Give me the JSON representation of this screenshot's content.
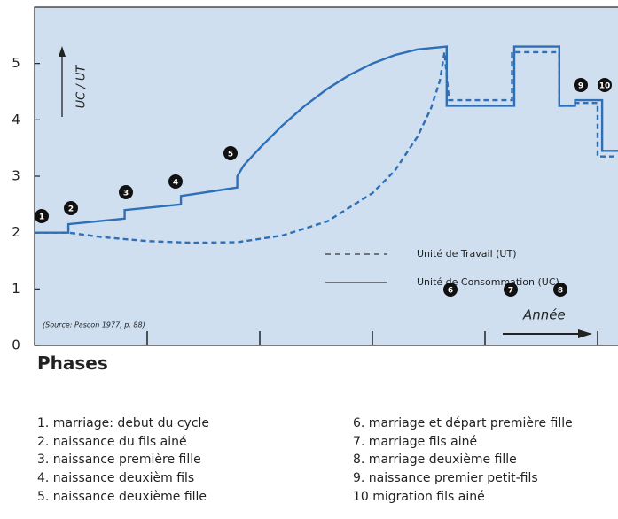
{
  "chart_data": {
    "type": "line",
    "ylabel": "UC / UT",
    "xlabel": "Année",
    "source": "(Source: Pascon 1977, p. 88)",
    "xlim": [
      0,
      26
    ],
    "ylim": [
      0,
      6
    ],
    "xticks": [
      5,
      10,
      15,
      20,
      25
    ],
    "yticks": [
      0,
      1,
      2,
      3,
      4,
      5
    ],
    "background": "#cfdff0",
    "series": [
      {
        "name": "Unité de Travail (UT)",
        "color": "#2f6fb5",
        "dash": true,
        "x": [
          0,
          1.5,
          3,
          5,
          7,
          9,
          11,
          13,
          15,
          16,
          17,
          17.6,
          18,
          18.2,
          18.4,
          21.2,
          21.2,
          23.3,
          23.3,
          24,
          24,
          25,
          25,
          26
        ],
        "values": [
          2,
          2,
          1.92,
          1.85,
          1.82,
          1.83,
          1.95,
          2.2,
          2.7,
          3.1,
          3.7,
          4.2,
          4.7,
          5.2,
          4.35,
          4.35,
          5.2,
          5.2,
          4.25,
          4.25,
          4.3,
          4.3,
          3.35,
          3.35
        ]
      },
      {
        "name": "Unité de Consommation (UC)",
        "color": "#2f6fb5",
        "dash": false,
        "x": [
          0,
          1.5,
          1.5,
          4,
          4,
          6.5,
          6.5,
          9,
          9,
          9.3,
          10,
          11,
          12,
          13,
          14,
          15,
          16,
          17,
          18.3,
          18.3,
          21.3,
          21.3,
          23.3,
          23.3,
          24,
          24,
          25.2,
          25.2,
          26
        ],
        "values": [
          2,
          2,
          2.15,
          2.25,
          2.4,
          2.5,
          2.65,
          2.8,
          3.0,
          3.2,
          3.5,
          3.9,
          4.25,
          4.55,
          4.8,
          5.0,
          5.15,
          5.25,
          5.3,
          4.25,
          4.25,
          5.3,
          5.3,
          4.25,
          4.25,
          4.35,
          4.35,
          3.45,
          3.45
        ]
      }
    ],
    "markers": [
      "1",
      "2",
      "3",
      "4",
      "5",
      "6",
      "7",
      "8",
      "9",
      "10"
    ]
  },
  "phases": {
    "title": "Phases",
    "items": [
      "1. marriage: debut du cycle",
      "2. naissance du fils ainé",
      "3. naissance première fille",
      "4. naissance deuxièm fils",
      "5. naissance deuxième fille",
      "6. marriage et départ première fille",
      "7. marriage fils ainé",
      "8. marriage deuxième fille",
      "9. naissance premier petit-fils",
      "10  migration fils ainé"
    ]
  }
}
